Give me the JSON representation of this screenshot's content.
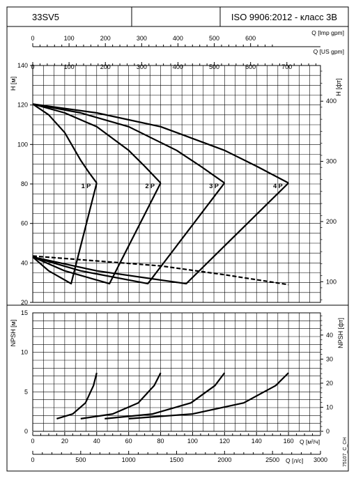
{
  "header": {
    "model": "33SV5",
    "middle": "",
    "standard": "ISO 9906:2012 - класс 3B"
  },
  "footer_code": "75107_C_CH",
  "colors": {
    "line": "#000000",
    "grid": "#000000",
    "background": "#ffffff"
  },
  "chart_data": [
    {
      "type": "line",
      "name": "head",
      "ylabel": "H [м]",
      "ylabel_right": "H [фт]",
      "ylim": [
        20,
        140
      ],
      "yticks": [
        "20",
        "40",
        "60",
        "80",
        "100",
        "120",
        "140"
      ],
      "yticks_right": [
        "100",
        "200",
        "300",
        "400"
      ],
      "x_top_imp_label": "Q [Imp gpm]",
      "x_top_imp_ticks": [
        "0",
        "100",
        "200",
        "300",
        "400",
        "500",
        "600"
      ],
      "x_top_us_label": "Q [US gpm]",
      "x_top_us_ticks": [
        "0",
        "100",
        "200",
        "300",
        "400",
        "500",
        "600",
        "700"
      ],
      "xlim": [
        0,
        180
      ],
      "series": [
        {
          "name": "1 P",
          "x": [
            0,
            10,
            20,
            30,
            35,
            40
          ],
          "y": [
            120.5,
            115,
            106,
            92,
            86,
            80.5
          ]
        },
        {
          "name": "2 P",
          "x": [
            0,
            20,
            40,
            60,
            70,
            80
          ],
          "y": [
            120.5,
            116,
            109,
            97,
            89,
            80.5
          ]
        },
        {
          "name": "3 P",
          "x": [
            0,
            30,
            60,
            90,
            105,
            120
          ],
          "y": [
            120.5,
            116,
            109,
            97,
            89,
            80.5
          ]
        },
        {
          "name": "4 P",
          "x": [
            0,
            40,
            80,
            120,
            140,
            160
          ],
          "y": [
            120.5,
            116,
            109,
            97,
            89,
            80.5
          ]
        }
      ],
      "power_series": [
        {
          "x": [
            0,
            10,
            24,
            40
          ],
          "y": [
            43,
            36,
            29.5,
            80.5
          ]
        },
        {
          "x": [
            0,
            20,
            48,
            80
          ],
          "y": [
            43,
            36,
            29.5,
            80.5
          ]
        },
        {
          "x": [
            0,
            30,
            72,
            120
          ],
          "y": [
            43,
            36,
            29.5,
            80.5
          ]
        },
        {
          "x": [
            0,
            40,
            96,
            160
          ],
          "y": [
            43,
            36,
            29.5,
            80.5
          ]
        }
      ],
      "efficiency_series": {
        "x": [
          0,
          40,
          80,
          120,
          160
        ],
        "y": [
          43.5,
          41,
          38.5,
          34,
          29
        ]
      }
    },
    {
      "type": "line",
      "name": "npsh",
      "ylabel": "NPSH [м]",
      "ylabel_right": "NPSH [фт]",
      "ylim": [
        0,
        15
      ],
      "yticks": [
        "0",
        "5",
        "10",
        "15"
      ],
      "yticks_right": [
        "0",
        "10",
        "20",
        "30",
        "40"
      ],
      "xlabel": "Q [м³/ч]",
      "xticks": [
        "0",
        "20",
        "40",
        "60",
        "80",
        "100",
        "120",
        "140",
        "160"
      ],
      "x2label": "Q [л/с]",
      "x2ticks": [
        "0",
        "500",
        "1000",
        "1500",
        "2000",
        "2500",
        "3000"
      ],
      "xlim": [
        0,
        180
      ],
      "series": [
        {
          "x": [
            15,
            25,
            33,
            38,
            40
          ],
          "y": [
            1.6,
            2.2,
            3.6,
            5.8,
            7.4
          ]
        },
        {
          "x": [
            30,
            50,
            66,
            76,
            80
          ],
          "y": [
            1.6,
            2.2,
            3.6,
            5.8,
            7.4
          ]
        },
        {
          "x": [
            45,
            75,
            99,
            114,
            120
          ],
          "y": [
            1.6,
            2.2,
            3.6,
            5.8,
            7.4
          ]
        },
        {
          "x": [
            60,
            100,
            132,
            152,
            160
          ],
          "y": [
            1.6,
            2.2,
            3.6,
            5.8,
            7.4
          ]
        }
      ]
    }
  ]
}
